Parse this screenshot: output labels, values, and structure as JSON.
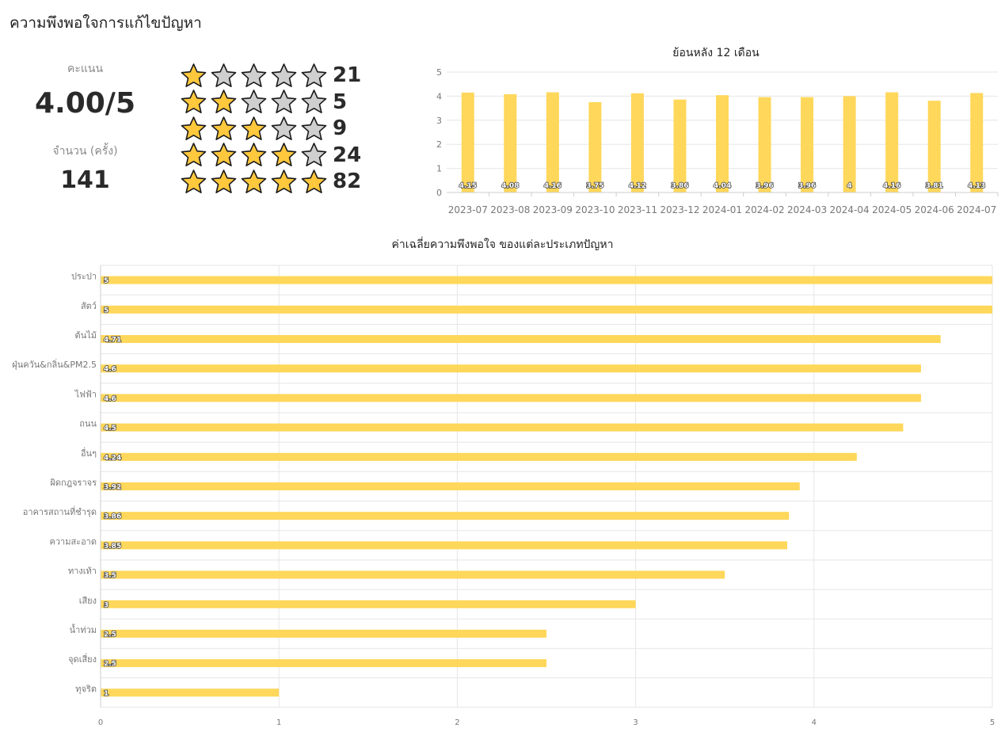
{
  "page": {
    "title": "ความพึงพอใจการแก้ไขปัญหา"
  },
  "summary": {
    "score_label": "คะแนน",
    "score_value": "4.00/5",
    "count_label": "จำนวน (ครั้ง)",
    "count_value": "141"
  },
  "rating_breakdown": [
    {
      "stars": 1,
      "count": "21"
    },
    {
      "stars": 2,
      "count": "5"
    },
    {
      "stars": 3,
      "count": "9"
    },
    {
      "stars": 4,
      "count": "24"
    },
    {
      "stars": 5,
      "count": "82"
    }
  ],
  "colors": {
    "bar": "#ffd75a",
    "star_filled": "#ffc83d",
    "star_empty": "#cfcfcf",
    "grid": "#e6e6e6",
    "axis_text": "#777777"
  },
  "chart_data": [
    {
      "type": "bar",
      "title": "ย้อนหลัง 12 เดือน",
      "categories": [
        "2023-07",
        "2023-08",
        "2023-09",
        "2023-10",
        "2023-11",
        "2023-12",
        "2024-01",
        "2024-02",
        "2024-03",
        "2024-04",
        "2024-05",
        "2024-06",
        "2024-07"
      ],
      "values": [
        4.15,
        4.08,
        4.16,
        3.75,
        4.12,
        3.86,
        4.04,
        3.96,
        3.96,
        4,
        4.16,
        3.81,
        4.13
      ],
      "data_labels": [
        "4.15",
        "4.08",
        "4.16",
        "3.75",
        "4.12",
        "3.86",
        "4.04",
        "3.96",
        "3.96",
        "4",
        "4.16",
        "3.81",
        "4.13"
      ],
      "ylim": [
        0,
        5
      ],
      "yticks": [
        "0",
        "1",
        "2",
        "3",
        "4",
        "5"
      ],
      "grid": true,
      "xlabel": "",
      "ylabel": ""
    },
    {
      "type": "bar",
      "orientation": "horizontal",
      "title": "ค่าเฉลี่ยความพึงพอใจ ของแต่ละประเภทปัญหา",
      "categories": [
        "ประปา",
        "สัตว์",
        "ต้นไม้",
        "ฝุ่นควัน&กลิ่น&PM2.5",
        "ไฟฟ้า",
        "ถนน",
        "อื่นๆ",
        "ผิดกฎจราจร",
        "อาคารสถานที่ชำรุด",
        "ความสะอาด",
        "ทางเท้า",
        "เสียง",
        "น้ำท่วม",
        "จุดเสี่ยง",
        "ทุจริต"
      ],
      "values": [
        5,
        5,
        4.71,
        4.6,
        4.6,
        4.5,
        4.24,
        3.92,
        3.86,
        3.85,
        3.5,
        3,
        2.5,
        2.5,
        1
      ],
      "data_labels": [
        "5",
        "5",
        "4.71",
        "4.6",
        "4.6",
        "4.5",
        "4.24",
        "3.92",
        "3.86",
        "3.85",
        "3.5",
        "3",
        "2.5",
        "2.5",
        "1"
      ],
      "xlim": [
        0,
        5
      ],
      "xticks": [
        "0",
        "1",
        "2",
        "3",
        "4",
        "5"
      ],
      "grid": true,
      "xlabel": "",
      "ylabel": ""
    }
  ]
}
